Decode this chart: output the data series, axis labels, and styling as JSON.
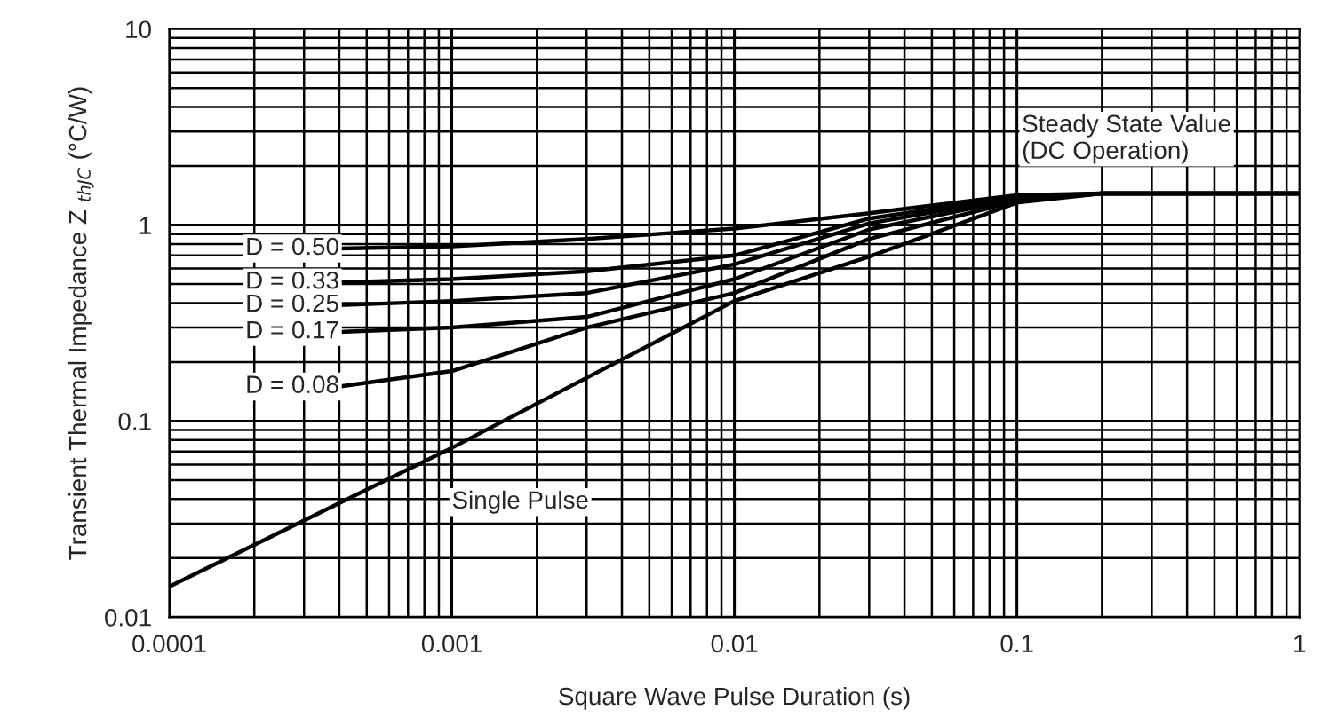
{
  "chart_data": {
    "type": "line",
    "xlabel": "Square Wave Pulse Duration (s)",
    "ylabel": "Transient Thermal Impedance Z $_{thJC}$ (°C/W)",
    "log": "xy",
    "xlim": [
      0.0001,
      1
    ],
    "ylim": [
      0.01,
      10
    ],
    "xticks": [
      {
        "value": 0.0001,
        "label": "0.0001"
      },
      {
        "value": 0.001,
        "label": "0.001"
      },
      {
        "value": 0.01,
        "label": "0.01"
      },
      {
        "value": 0.1,
        "label": "0.1"
      },
      {
        "value": 1,
        "label": "1"
      }
    ],
    "yticks": [
      {
        "value": 0.01,
        "label": "0.01"
      },
      {
        "value": 0.1,
        "label": "0.1"
      },
      {
        "value": 1,
        "label": "1"
      },
      {
        "value": 10,
        "label": "10"
      }
    ],
    "grid": true,
    "legend": false,
    "line_style": "solid",
    "marker": "none",
    "series": [
      {
        "name": "D = 0.50",
        "color": "#000000",
        "x": [
          0.0004,
          0.001,
          0.003,
          0.01,
          0.03,
          0.1,
          0.2,
          1
        ],
        "values": [
          0.76,
          0.78,
          0.85,
          0.96,
          1.15,
          1.42,
          1.45,
          1.45
        ]
      },
      {
        "name": "D = 0.33",
        "color": "#000000",
        "x": [
          0.0004,
          0.001,
          0.003,
          0.01,
          0.03,
          0.1,
          0.2,
          1
        ],
        "values": [
          0.51,
          0.53,
          0.58,
          0.7,
          1.08,
          1.4,
          1.45,
          1.45
        ]
      },
      {
        "name": "D = 0.25",
        "color": "#000000",
        "x": [
          0.0004,
          0.001,
          0.003,
          0.01,
          0.03,
          0.1,
          0.2,
          1
        ],
        "values": [
          0.39,
          0.41,
          0.45,
          0.63,
          1.02,
          1.38,
          1.45,
          1.45
        ]
      },
      {
        "name": "D = 0.17",
        "color": "#000000",
        "x": [
          0.0004,
          0.001,
          0.003,
          0.01,
          0.03,
          0.1,
          0.2,
          1
        ],
        "values": [
          0.285,
          0.3,
          0.34,
          0.53,
          0.95,
          1.36,
          1.45,
          1.45
        ]
      },
      {
        "name": "D = 0.08",
        "color": "#000000",
        "x": [
          0.0004,
          0.001,
          0.003,
          0.01,
          0.03,
          0.1,
          0.2,
          1
        ],
        "values": [
          0.15,
          0.18,
          0.3,
          0.45,
          0.85,
          1.33,
          1.45,
          1.45
        ]
      },
      {
        "name": "Single Pulse",
        "color": "#000000",
        "x": [
          0.0001,
          0.001,
          0.01,
          0.03,
          0.1,
          0.2,
          1
        ],
        "values": [
          0.0143,
          0.073,
          0.41,
          0.69,
          1.3,
          1.45,
          1.45
        ]
      }
    ],
    "annotations": [
      {
        "text": "Steady State Value\n(DC Operation)",
        "x": 0.1,
        "y": 1.45
      }
    ]
  }
}
